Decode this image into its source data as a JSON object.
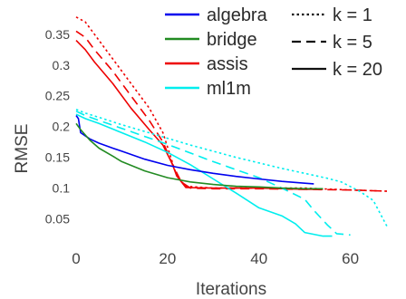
{
  "chart_data": {
    "type": "line",
    "title": "",
    "xlabel": "Iterations",
    "ylabel": "RMSE",
    "xlim": [
      0,
      68
    ],
    "ylim": [
      0.02,
      0.385
    ],
    "xticks": [
      0,
      20,
      40,
      60
    ],
    "xtick_labels": [
      "0",
      "20",
      "40",
      "60"
    ],
    "yticks": [
      0.05,
      0.1,
      0.15,
      0.2,
      0.25,
      0.3,
      0.35
    ],
    "ytick_labels": [
      "0.05",
      "0.1",
      "0.15",
      "0.2",
      "0.25",
      "0.3",
      "0.35"
    ],
    "grid": false,
    "legend_placement": "top-right",
    "dataset_legend": [
      {
        "name": "algebra",
        "color": "#0000ee"
      },
      {
        "name": "bridge",
        "color": "#228b22"
      },
      {
        "name": "assis",
        "color": "#ee0000"
      },
      {
        "name": "ml1m",
        "color": "#00eeee"
      }
    ],
    "k_legend": [
      {
        "name": "k = 1",
        "dash": "dot"
      },
      {
        "name": "k = 5",
        "dash": "dash"
      },
      {
        "name": "k = 20",
        "dash": "solid"
      }
    ],
    "series": [
      {
        "dataset": "assis",
        "k": "1",
        "color": "#ee0000",
        "dash": "dot",
        "x": [
          0,
          2,
          4,
          8,
          12,
          16,
          19,
          22,
          24,
          30,
          40,
          50,
          60,
          68
        ],
        "y": [
          0.378,
          0.37,
          0.35,
          0.31,
          0.27,
          0.23,
          0.19,
          0.12,
          0.103,
          0.1,
          0.1,
          0.1,
          0.097,
          0.095
        ]
      },
      {
        "dataset": "assis",
        "k": "5",
        "color": "#ee0000",
        "dash": "dash",
        "x": [
          0,
          2,
          4,
          8,
          12,
          16,
          19,
          21,
          23,
          25,
          30,
          40,
          50,
          60,
          68
        ],
        "y": [
          0.355,
          0.345,
          0.325,
          0.29,
          0.25,
          0.21,
          0.175,
          0.14,
          0.11,
          0.1,
          0.099,
          0.099,
          0.098,
          0.097,
          0.095
        ]
      },
      {
        "dataset": "assis",
        "k": "20",
        "color": "#ee0000",
        "dash": "solid",
        "x": [
          0,
          2,
          4,
          8,
          12,
          16,
          19,
          21,
          22,
          24,
          30,
          40,
          50,
          54
        ],
        "y": [
          0.34,
          0.325,
          0.305,
          0.27,
          0.23,
          0.195,
          0.17,
          0.14,
          0.12,
          0.101,
          0.1,
          0.1,
          0.098,
          0.098
        ]
      },
      {
        "dataset": "ml1m",
        "k": "1",
        "color": "#00eeee",
        "dash": "dot",
        "x": [
          0,
          2,
          5,
          10,
          15,
          20,
          25,
          30,
          35,
          40,
          45,
          50,
          55,
          58,
          62,
          65,
          68
        ],
        "y": [
          0.228,
          0.222,
          0.215,
          0.203,
          0.192,
          0.181,
          0.17,
          0.16,
          0.15,
          0.141,
          0.132,
          0.124,
          0.116,
          0.11,
          0.095,
          0.08,
          0.038
        ]
      },
      {
        "dataset": "ml1m",
        "k": "5",
        "color": "#00eeee",
        "dash": "dash",
        "x": [
          0,
          2,
          5,
          10,
          15,
          20,
          25,
          30,
          35,
          40,
          45,
          50,
          52,
          55,
          57,
          60
        ],
        "y": [
          0.225,
          0.218,
          0.21,
          0.197,
          0.184,
          0.171,
          0.157,
          0.143,
          0.13,
          0.117,
          0.1,
          0.082,
          0.064,
          0.04,
          0.026,
          0.024
        ]
      },
      {
        "dataset": "ml1m",
        "k": "20",
        "color": "#00eeee",
        "dash": "solid",
        "x": [
          0,
          2,
          5,
          10,
          15,
          20,
          25,
          30,
          35,
          40,
          45,
          48,
          50,
          54,
          56
        ],
        "y": [
          0.22,
          0.213,
          0.205,
          0.19,
          0.175,
          0.158,
          0.138,
          0.115,
          0.092,
          0.068,
          0.055,
          0.042,
          0.028,
          0.022,
          0.022
        ]
      },
      {
        "dataset": "algebra",
        "k": "20",
        "color": "#0000ee",
        "dash": "solid",
        "x": [
          0,
          0.5,
          1,
          2,
          3,
          5,
          8,
          10,
          15,
          20,
          25,
          30,
          35,
          40,
          45,
          50,
          52
        ],
        "y": [
          0.218,
          0.213,
          0.19,
          0.185,
          0.18,
          0.173,
          0.165,
          0.16,
          0.147,
          0.137,
          0.13,
          0.124,
          0.119,
          0.115,
          0.111,
          0.108,
          0.107
        ]
      },
      {
        "dataset": "bridge",
        "k": "20",
        "color": "#228b22",
        "dash": "solid",
        "x": [
          0,
          1,
          3,
          5,
          8,
          10,
          15,
          20,
          25,
          30,
          35,
          40,
          45,
          50,
          54
        ],
        "y": [
          0.205,
          0.195,
          0.178,
          0.165,
          0.152,
          0.143,
          0.128,
          0.117,
          0.11,
          0.106,
          0.103,
          0.102,
          0.1,
          0.099,
          0.099
        ]
      }
    ]
  }
}
